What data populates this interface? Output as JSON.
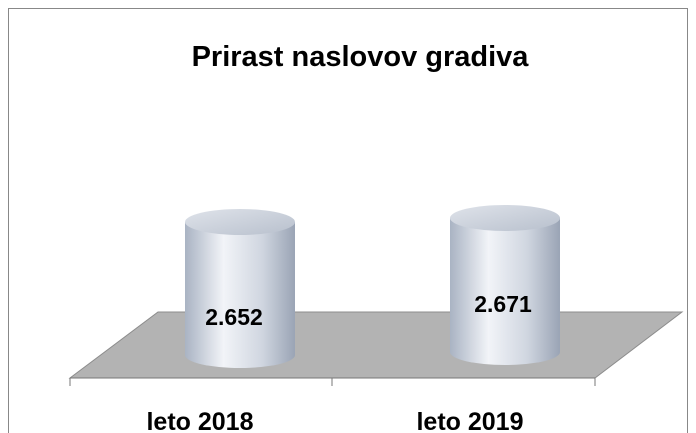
{
  "chart_data": {
    "type": "cylinder",
    "title": "Prirast naslovov gradiva",
    "categories": [
      "leto 2018",
      "leto 2019"
    ],
    "values": [
      2652,
      2671
    ],
    "value_labels": [
      "2.652",
      "2.671"
    ]
  }
}
